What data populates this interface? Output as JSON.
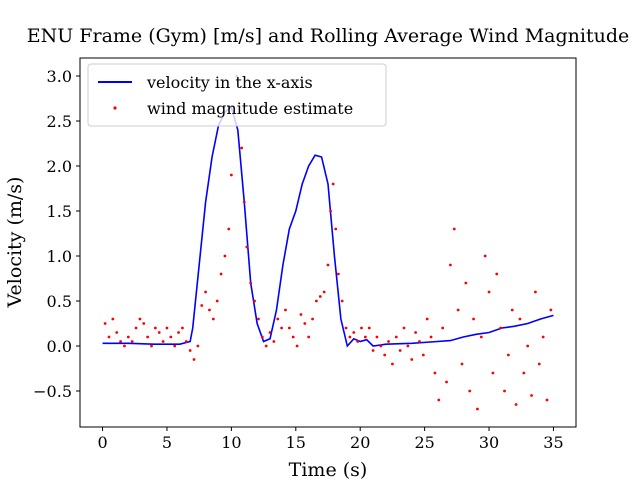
{
  "chart_data": {
    "type": "line-scatter",
    "title": "ENU Frame (Gym) [m/s] and Rolling Average Wind Magnitude",
    "x_label": "Time (s)",
    "y_label": "Velocity (m/s)",
    "xlim": [
      -1.75,
      36.75
    ],
    "ylim": [
      -0.9,
      3.2
    ],
    "xticks": [
      0,
      5,
      10,
      15,
      20,
      25,
      30,
      35
    ],
    "yticks": [
      {
        "value": -0.5,
        "label": "−0.5"
      },
      {
        "value": 0.0,
        "label": "0.0"
      },
      {
        "value": 0.5,
        "label": "0.5"
      },
      {
        "value": 1.0,
        "label": "1.0"
      },
      {
        "value": 1.5,
        "label": "1.5"
      },
      {
        "value": 2.0,
        "label": "2.0"
      },
      {
        "value": 2.5,
        "label": "2.5"
      },
      {
        "value": 3.0,
        "label": "3.0"
      }
    ],
    "legend": "upper left",
    "series": [
      {
        "name": "velocity in the x-axis",
        "kind": "line",
        "color": "#0000ff",
        "x": [
          0,
          2,
          4,
          6,
          6.8,
          7,
          7.5,
          8,
          8.5,
          9,
          9.5,
          10,
          10.5,
          11,
          11.5,
          12,
          12.5,
          13,
          13.5,
          14,
          14.5,
          15,
          15.5,
          16,
          16.5,
          17,
          17.5,
          18,
          18.5,
          19,
          19.5,
          20,
          20.5,
          21,
          22,
          24,
          26,
          27,
          28,
          29,
          30,
          31,
          32,
          33,
          34,
          35
        ],
        "values": [
          0.03,
          0.03,
          0.02,
          0.02,
          0.05,
          0.2,
          0.9,
          1.6,
          2.1,
          2.45,
          2.6,
          2.65,
          2.4,
          1.6,
          0.7,
          0.25,
          0.05,
          0.08,
          0.4,
          0.9,
          1.3,
          1.5,
          1.8,
          2.0,
          2.12,
          2.1,
          1.8,
          1.0,
          0.3,
          0.0,
          0.08,
          0.05,
          0.07,
          0.0,
          0.02,
          0.03,
          0.05,
          0.06,
          0.1,
          0.13,
          0.15,
          0.2,
          0.22,
          0.25,
          0.3,
          0.34
        ]
      },
      {
        "name": "wind magnitude estimate",
        "kind": "scatter",
        "color": "#ff0000",
        "x": [
          0.2,
          0.5,
          0.8,
          1.1,
          1.4,
          1.7,
          2.0,
          2.3,
          2.6,
          2.9,
          3.2,
          3.5,
          3.8,
          4.1,
          4.4,
          4.7,
          5.0,
          5.3,
          5.6,
          5.9,
          6.2,
          6.5,
          6.8,
          7.1,
          7.4,
          7.7,
          8.0,
          8.3,
          8.6,
          8.9,
          9.2,
          9.5,
          9.8,
          10.0,
          10.2,
          10.4,
          10.6,
          10.8,
          11.0,
          11.2,
          11.5,
          11.8,
          12.1,
          12.4,
          12.7,
          13.0,
          13.3,
          13.6,
          13.9,
          14.2,
          14.5,
          14.8,
          15.1,
          15.4,
          15.7,
          16.0,
          16.3,
          16.6,
          16.9,
          17.2,
          17.5,
          17.7,
          17.9,
          18.1,
          18.3,
          18.6,
          18.9,
          19.2,
          19.5,
          19.8,
          20.1,
          20.4,
          20.7,
          21.0,
          21.3,
          21.6,
          21.9,
          22.2,
          22.5,
          22.8,
          23.1,
          23.4,
          23.7,
          24.0,
          24.3,
          24.6,
          24.9,
          25.2,
          25.5,
          25.8,
          26.1,
          26.4,
          26.7,
          27.0,
          27.3,
          27.6,
          27.9,
          28.2,
          28.5,
          28.8,
          29.1,
          29.4,
          29.7,
          30.0,
          30.3,
          30.6,
          30.9,
          31.2,
          31.5,
          31.8,
          32.1,
          32.4,
          32.7,
          33.0,
          33.3,
          33.6,
          33.9,
          34.2,
          34.5,
          34.8
        ],
        "values": [
          0.25,
          0.1,
          0.3,
          0.15,
          0.05,
          0.0,
          0.1,
          0.05,
          0.2,
          0.3,
          0.25,
          0.1,
          0.0,
          0.2,
          0.15,
          0.05,
          0.2,
          0.1,
          0.0,
          0.15,
          0.2,
          0.05,
          -0.05,
          -0.15,
          0.0,
          0.45,
          0.6,
          0.4,
          0.3,
          0.5,
          0.8,
          1.0,
          1.3,
          1.9,
          2.6,
          3.0,
          2.7,
          2.2,
          1.6,
          1.1,
          0.7,
          0.5,
          0.3,
          0.1,
          0.0,
          0.15,
          0.05,
          0.3,
          0.2,
          0.4,
          0.2,
          0.1,
          0.0,
          0.35,
          0.25,
          0.1,
          0.3,
          0.5,
          0.55,
          0.6,
          0.9,
          1.5,
          1.8,
          1.3,
          0.8,
          0.5,
          0.2,
          0.1,
          0.15,
          0.05,
          0.2,
          0.1,
          0.2,
          -0.05,
          0.1,
          0.0,
          -0.1,
          0.05,
          -0.2,
          0.1,
          -0.05,
          0.2,
          0.0,
          -0.15,
          0.15,
          0.05,
          -0.1,
          0.3,
          0.1,
          -0.3,
          -0.6,
          0.2,
          -0.4,
          0.9,
          1.3,
          0.4,
          -0.2,
          0.7,
          -0.5,
          0.3,
          -0.7,
          0.1,
          1.0,
          0.6,
          -0.3,
          0.8,
          0.2,
          -0.5,
          -0.1,
          0.4,
          -0.65,
          0.3,
          -0.3,
          0.0,
          -0.55,
          0.6,
          -0.2,
          0.1,
          -0.6,
          0.4
        ]
      }
    ]
  }
}
